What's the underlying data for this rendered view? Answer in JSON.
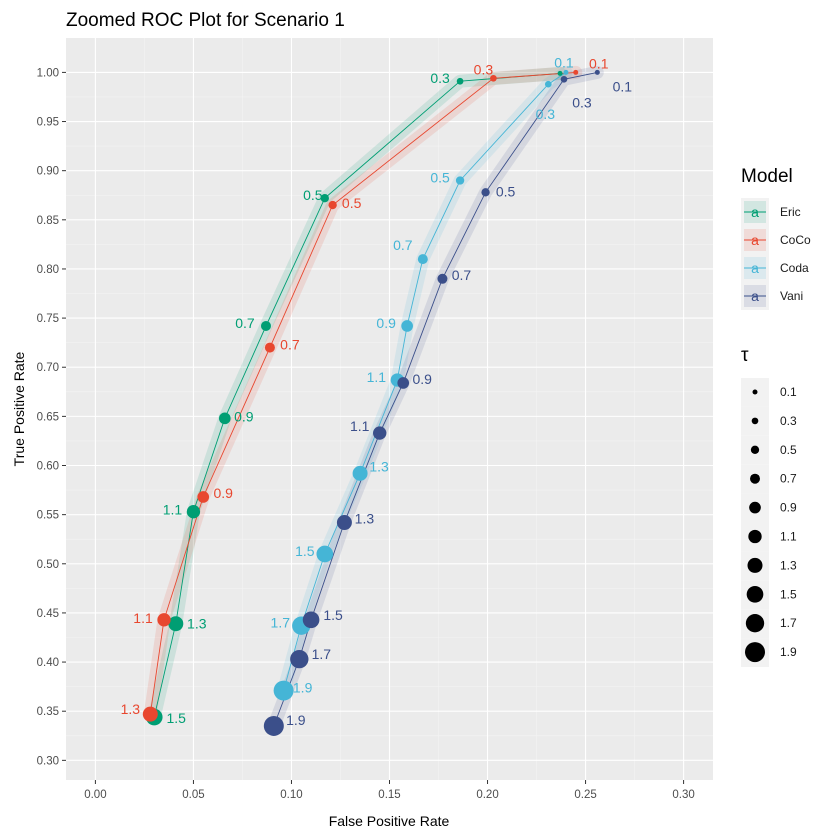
{
  "chart_data": {
    "type": "line",
    "title": "Zoomed ROC Plot for Scenario 1",
    "xlabel": "False Positive Rate",
    "ylabel": "True Positive Rate",
    "xlim": [
      -0.015,
      0.315
    ],
    "ylim": [
      0.28,
      1.035
    ],
    "x_ticks": [
      "0.00",
      "0.05",
      "0.10",
      "0.15",
      "0.20",
      "0.25",
      "0.30"
    ],
    "y_ticks": [
      "0.30",
      "0.35",
      "0.40",
      "0.45",
      "0.50",
      "0.55",
      "0.60",
      "0.65",
      "0.70",
      "0.75",
      "0.80",
      "0.85",
      "0.90",
      "0.95",
      "1.00"
    ],
    "grid": true,
    "legend_position": "right",
    "color_legend": {
      "title": "Model",
      "entries": [
        "Eric",
        "CoCo",
        "Coda",
        "Vani"
      ],
      "glyph": "a"
    },
    "size_legend": {
      "title": "τ",
      "entries": [
        "0.1",
        "0.3",
        "0.5",
        "0.7",
        "0.9",
        "1.1",
        "1.3",
        "1.5",
        "1.7",
        "1.9"
      ]
    },
    "series": [
      {
        "name": "Eric",
        "color": "#009E73",
        "points": [
          {
            "tau": "0.1",
            "x": 0.237,
            "y": 0.999,
            "label": ""
          },
          {
            "tau": "0.3",
            "x": 0.186,
            "y": 0.991,
            "label": "0.3"
          },
          {
            "tau": "0.5",
            "x": 0.117,
            "y": 0.872,
            "label": "0.5"
          },
          {
            "tau": "0.7",
            "x": 0.087,
            "y": 0.742,
            "label": "0.7"
          },
          {
            "tau": "0.9",
            "x": 0.066,
            "y": 0.648,
            "label": "0.9"
          },
          {
            "tau": "1.1",
            "x": 0.05,
            "y": 0.553,
            "label": "1.1"
          },
          {
            "tau": "1.3",
            "x": 0.041,
            "y": 0.439,
            "label": "1.3"
          },
          {
            "tau": "1.5",
            "x": 0.03,
            "y": 0.344,
            "label": "1.5"
          }
        ]
      },
      {
        "name": "CoCo",
        "color": "#E8472F",
        "points": [
          {
            "tau": "0.1",
            "x": 0.245,
            "y": 1.0,
            "label": "0.1"
          },
          {
            "tau": "0.3",
            "x": 0.203,
            "y": 0.994,
            "label": "0.3"
          },
          {
            "tau": "0.5",
            "x": 0.121,
            "y": 0.865,
            "label": "0.5"
          },
          {
            "tau": "0.7",
            "x": 0.089,
            "y": 0.72,
            "label": "0.7"
          },
          {
            "tau": "0.9",
            "x": 0.055,
            "y": 0.568,
            "label": "0.9"
          },
          {
            "tau": "1.1",
            "x": 0.035,
            "y": 0.443,
            "label": "1.1"
          },
          {
            "tau": "1.3",
            "x": 0.028,
            "y": 0.347,
            "label": "1.3"
          }
        ]
      },
      {
        "name": "Coda",
        "color": "#45B5D6",
        "points": [
          {
            "tau": "0.1",
            "x": 0.24,
            "y": 1.0,
            "label": "0.1"
          },
          {
            "tau": "0.3",
            "x": 0.231,
            "y": 0.988,
            "label": "0.3"
          },
          {
            "tau": "0.5",
            "x": 0.186,
            "y": 0.89,
            "label": "0.5"
          },
          {
            "tau": "0.7",
            "x": 0.167,
            "y": 0.81,
            "label": "0.7"
          },
          {
            "tau": "0.9",
            "x": 0.159,
            "y": 0.742,
            "label": "0.9"
          },
          {
            "tau": "1.1",
            "x": 0.154,
            "y": 0.687,
            "label": "1.1"
          },
          {
            "tau": "1.3",
            "x": 0.135,
            "y": 0.592,
            "label": "1.3"
          },
          {
            "tau": "1.5",
            "x": 0.117,
            "y": 0.51,
            "label": "1.5"
          },
          {
            "tau": "1.7",
            "x": 0.105,
            "y": 0.437,
            "label": "1.7"
          },
          {
            "tau": "1.9",
            "x": 0.096,
            "y": 0.371,
            "label": "1.9"
          }
        ]
      },
      {
        "name": "Vani",
        "color": "#3B4F8A",
        "points": [
          {
            "tau": "0.1",
            "x": 0.256,
            "y": 1.0,
            "label": "0.1"
          },
          {
            "tau": "0.3",
            "x": 0.239,
            "y": 0.993,
            "label": "0.3"
          },
          {
            "tau": "0.5",
            "x": 0.199,
            "y": 0.878,
            "label": "0.5"
          },
          {
            "tau": "0.7",
            "x": 0.177,
            "y": 0.79,
            "label": "0.7"
          },
          {
            "tau": "0.9",
            "x": 0.157,
            "y": 0.684,
            "label": "0.9"
          },
          {
            "tau": "1.1",
            "x": 0.145,
            "y": 0.633,
            "label": "1.1"
          },
          {
            "tau": "1.3",
            "x": 0.127,
            "y": 0.542,
            "label": "1.3"
          },
          {
            "tau": "1.5",
            "x": 0.11,
            "y": 0.443,
            "label": "1.5"
          },
          {
            "tau": "1.7",
            "x": 0.104,
            "y": 0.403,
            "label": "1.7"
          },
          {
            "tau": "1.9",
            "x": 0.091,
            "y": 0.335,
            "label": "1.9"
          }
        ]
      }
    ]
  }
}
